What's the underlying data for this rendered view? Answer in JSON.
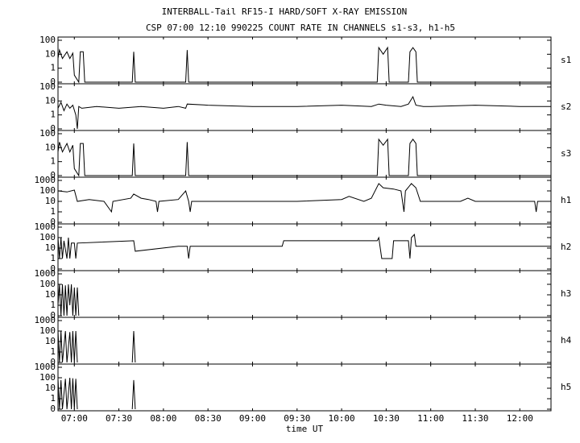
{
  "chart_data": {
    "type": "line",
    "title": "INTERBALL-Tail RF15-I HARD/SOFT X-RAY EMISSION",
    "subtitle": "CSP 07:00 12:10 990225  COUNT RATE IN CHANNELS s1-s3, h1-h5",
    "xlabel": "time UT",
    "xlim": [
      "06:49",
      "12:21"
    ],
    "xticks": [
      "07:00",
      "07:30",
      "08:00",
      "08:30",
      "09:00",
      "09:30",
      "10:00",
      "10:30",
      "11:00",
      "11:30",
      "12:00"
    ],
    "yscale": "log-with-zero",
    "color": "#000000",
    "panels": [
      {
        "name": "s1",
        "ylim": [
          0,
          100
        ],
        "yticks": [
          0,
          1,
          10,
          100
        ],
        "x": [
          "06:49",
          "06:50",
          "06:52",
          "06:55",
          "06:57",
          "06:59",
          "07:00",
          "07:03",
          "07:04",
          "07:06",
          "07:07",
          "07:39",
          "07:40",
          "07:41",
          "08:15",
          "08:16",
          "08:17",
          "10:24",
          "10:25",
          "10:28",
          "10:31",
          "10:32",
          "10:45",
          "10:46",
          "10:48",
          "10:50",
          "10:51",
          "12:21"
        ],
        "values": [
          5,
          20,
          5,
          15,
          5,
          12,
          0.5,
          0,
          15,
          15,
          0,
          0,
          15,
          0,
          0,
          20,
          0,
          0,
          30,
          10,
          30,
          0,
          0,
          15,
          30,
          15,
          0,
          0
        ]
      },
      {
        "name": "s2",
        "ylim": [
          0,
          100
        ],
        "yticks": [
          0,
          1,
          10,
          100
        ],
        "x": [
          "06:49",
          "06:51",
          "06:53",
          "06:55",
          "06:57",
          "06:59",
          "07:01",
          "07:02",
          "07:03",
          "07:05",
          "07:15",
          "07:30",
          "07:45",
          "08:00",
          "08:10",
          "08:15",
          "08:16",
          "08:30",
          "09:00",
          "09:30",
          "10:00",
          "10:20",
          "10:25",
          "10:30",
          "10:40",
          "10:45",
          "10:48",
          "10:50",
          "10:55",
          "11:00",
          "11:30",
          "12:00",
          "12:21"
        ],
        "values": [
          3,
          8,
          2,
          6,
          3,
          5,
          1,
          0,
          4,
          3,
          4,
          3,
          4,
          3,
          4,
          3,
          6,
          5,
          4,
          4,
          5,
          4,
          6,
          5,
          4,
          6,
          20,
          5,
          4,
          4,
          5,
          4,
          4
        ]
      },
      {
        "name": "s3",
        "ylim": [
          0,
          100
        ],
        "yticks": [
          0,
          1,
          10,
          100
        ],
        "x": [
          "06:49",
          "06:50",
          "06:52",
          "06:55",
          "06:57",
          "06:59",
          "07:00",
          "07:03",
          "07:04",
          "07:06",
          "07:07",
          "07:39",
          "07:40",
          "07:41",
          "08:15",
          "08:16",
          "08:17",
          "10:24",
          "10:25",
          "10:28",
          "10:31",
          "10:32",
          "10:45",
          "10:46",
          "10:48",
          "10:50",
          "10:51",
          "12:21"
        ],
        "values": [
          5,
          25,
          5,
          20,
          5,
          15,
          0.5,
          0,
          20,
          20,
          0,
          0,
          20,
          0,
          0,
          25,
          0,
          0,
          40,
          15,
          40,
          0,
          0,
          20,
          40,
          20,
          0,
          0
        ]
      },
      {
        "name": "h1",
        "ylim": [
          0,
          1000
        ],
        "yticks": [
          0,
          1,
          10,
          100,
          1000
        ],
        "x": [
          "06:49",
          "06:55",
          "07:00",
          "07:02",
          "07:10",
          "07:20",
          "07:25",
          "07:26",
          "07:38",
          "07:40",
          "07:45",
          "07:50",
          "07:55",
          "07:56",
          "07:57",
          "08:10",
          "08:15",
          "08:17",
          "08:18",
          "08:19",
          "09:00",
          "09:30",
          "10:00",
          "10:05",
          "10:15",
          "10:20",
          "10:25",
          "10:28",
          "10:35",
          "10:40",
          "10:42",
          "10:43",
          "10:47",
          "10:50",
          "10:53",
          "11:00",
          "11:20",
          "11:25",
          "11:30",
          "12:00",
          "12:10",
          "12:11",
          "12:12",
          "12:21"
        ],
        "values": [
          100,
          80,
          120,
          10,
          15,
          10,
          1,
          10,
          20,
          50,
          20,
          15,
          10,
          1,
          10,
          15,
          100,
          10,
          1,
          10,
          10,
          10,
          15,
          30,
          10,
          20,
          500,
          200,
          150,
          100,
          1,
          100,
          500,
          200,
          10,
          10,
          10,
          20,
          10,
          10,
          10,
          1,
          10,
          10
        ]
      },
      {
        "name": "h2",
        "ylim": [
          0,
          1000
        ],
        "yticks": [
          0,
          1,
          10,
          100,
          1000
        ],
        "x": [
          "06:49",
          "06:50",
          "06:51",
          "06:52",
          "06:53",
          "06:55",
          "06:56",
          "06:57",
          "06:58",
          "07:00",
          "07:01",
          "07:02",
          "07:40",
          "07:41",
          "08:10",
          "08:16",
          "08:17",
          "08:18",
          "09:20",
          "09:21",
          "10:24",
          "10:25",
          "10:27",
          "10:34",
          "10:35",
          "10:45",
          "10:46",
          "10:47",
          "10:49",
          "10:50",
          "12:21"
        ],
        "values": [
          100,
          1,
          100,
          1,
          50,
          1,
          100,
          1,
          30,
          30,
          1,
          30,
          50,
          5,
          15,
          15,
          1,
          15,
          15,
          50,
          50,
          100,
          1,
          1,
          50,
          50,
          1,
          100,
          200,
          15,
          15
        ]
      },
      {
        "name": "h3",
        "ylim": [
          0,
          1000
        ],
        "yticks": [
          0,
          1,
          10,
          100,
          1000
        ],
        "x": [
          "06:49",
          "06:50",
          "06:51",
          "06:52",
          "06:53",
          "06:54",
          "06:55",
          "06:56",
          "06:57",
          "06:58",
          "06:59",
          "07:00",
          "07:01",
          "07:02",
          "07:03"
        ],
        "values": [
          1,
          100,
          0,
          100,
          0,
          80,
          0,
          100,
          1,
          100,
          0,
          50,
          0,
          50,
          0
        ]
      },
      {
        "name": "h4",
        "ylim": [
          0,
          1000
        ],
        "yticks": [
          0,
          1,
          10,
          100,
          1000
        ],
        "x": [
          "06:49",
          "06:50",
          "06:51",
          "06:52",
          "06:54",
          "06:55",
          "06:57",
          "06:58",
          "06:59",
          "07:00",
          "07:01",
          "07:02",
          "07:10",
          "07:39",
          "07:40",
          "07:41"
        ],
        "values": [
          100,
          0,
          100,
          0,
          100,
          0,
          80,
          0,
          100,
          0,
          100,
          0,
          null,
          0,
          100,
          0
        ]
      },
      {
        "name": "h5",
        "ylim": [
          0,
          1000
        ],
        "yticks": [
          0,
          1,
          10,
          100,
          1000
        ],
        "x": [
          "06:49",
          "06:50",
          "06:51",
          "06:52",
          "06:54",
          "06:55",
          "06:57",
          "06:58",
          "06:59",
          "07:00",
          "07:01",
          "07:02",
          "07:10",
          "07:39",
          "07:40",
          "07:41"
        ],
        "values": [
          80,
          0,
          60,
          0,
          80,
          0,
          100,
          0,
          90,
          0,
          80,
          0,
          null,
          0,
          60,
          0
        ]
      }
    ]
  }
}
